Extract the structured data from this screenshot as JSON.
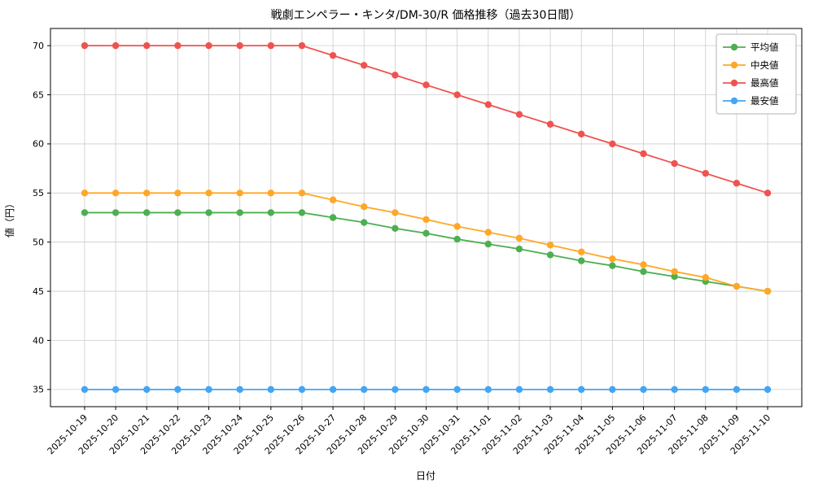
{
  "chart_data": {
    "type": "line",
    "title": "戦劇エンペラー・キンタ/DM-30/R 価格推移（過去30日間）",
    "xlabel": "日付",
    "ylabel": "値（円）",
    "categories": [
      "2025-10-19",
      "2025-10-20",
      "2025-10-21",
      "2025-10-22",
      "2025-10-23",
      "2025-10-24",
      "2025-10-25",
      "2025-10-26",
      "2025-10-27",
      "2025-10-28",
      "2025-10-29",
      "2025-10-30",
      "2025-10-31",
      "2025-11-01",
      "2025-11-02",
      "2025-11-03",
      "2025-11-04",
      "2025-11-05",
      "2025-11-06",
      "2025-11-07",
      "2025-11-08",
      "2025-11-09",
      "2025-11-10"
    ],
    "series": [
      {
        "name": "平均値",
        "color": "#4caf50",
        "values": [
          53,
          53,
          53,
          53,
          53,
          53,
          53,
          53,
          52.5,
          52,
          51.4,
          50.9,
          50.3,
          49.8,
          49.3,
          48.7,
          48.1,
          47.6,
          47,
          46.5,
          46,
          45.5,
          45
        ]
      },
      {
        "name": "中央値",
        "color": "#ffa726",
        "values": [
          55,
          55,
          55,
          55,
          55,
          55,
          55,
          55,
          54.3,
          53.6,
          53,
          52.3,
          51.6,
          51,
          50.4,
          49.7,
          49,
          48.3,
          47.7,
          47,
          46.4,
          45.5,
          45
        ]
      },
      {
        "name": "最高値",
        "color": "#ef5350",
        "values": [
          70,
          70,
          70,
          70,
          70,
          70,
          70,
          70,
          69,
          68,
          67,
          66,
          65,
          64,
          63,
          62,
          61,
          60,
          59,
          58,
          57,
          56,
          55
        ]
      },
      {
        "name": "最安値",
        "color": "#42a5f5",
        "values": [
          35,
          35,
          35,
          35,
          35,
          35,
          35,
          35,
          35,
          35,
          35,
          35,
          35,
          35,
          35,
          35,
          35,
          35,
          35,
          35,
          35,
          35,
          35
        ]
      }
    ],
    "yticks": [
      35,
      40,
      45,
      50,
      55,
      60,
      65,
      70
    ],
    "ylim": [
      33.25,
      71.75
    ],
    "grid": true,
    "grid_color": "#cccccc",
    "legend_position": "upper right"
  }
}
